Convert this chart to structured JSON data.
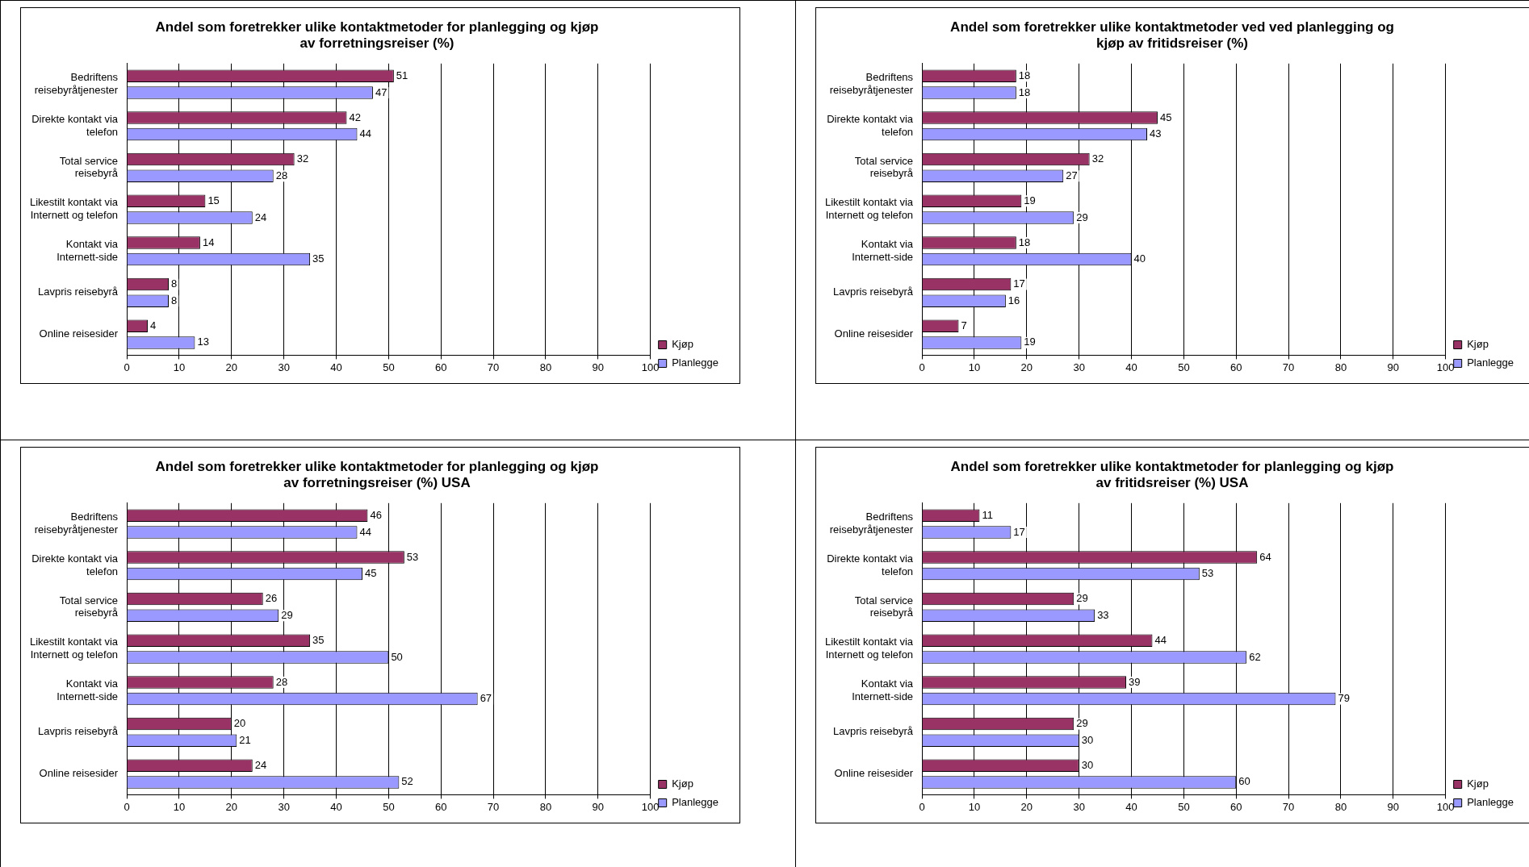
{
  "chart_data": [
    {
      "type": "bar",
      "orientation": "horizontal",
      "title": "Andel som foretrekker ulike kontaktmetoder for planlegging og kjøp av forretningsreiser (%)",
      "categories": [
        "Bedriftens reisebyråtjenester",
        "Direkte kontakt via telefon",
        "Total service reisebyrå",
        "Likestilt kontakt via Internett og telefon",
        "Kontakt via Internett-side",
        "Lavpris reisebyrå",
        "Online reisesider"
      ],
      "series": [
        {
          "name": "Kjøp",
          "color": "#993366",
          "values": [
            51,
            42,
            32,
            15,
            14,
            8,
            4
          ]
        },
        {
          "name": "Planlegge",
          "color": "#9999ff",
          "values": [
            47,
            44,
            28,
            24,
            35,
            8,
            13
          ]
        }
      ],
      "xlim": [
        0,
        100
      ],
      "xticks": [
        0,
        10,
        20,
        30,
        40,
        50,
        60,
        70,
        80,
        90,
        100
      ],
      "grid": "x",
      "legend": "bottom right",
      "data_labels": true
    },
    {
      "type": "bar",
      "orientation": "horizontal",
      "title": "Andel som foretrekker ulike kontaktmetoder ved ved planlegging og kjøp av fritidsreiser (%)",
      "categories": [
        "Bedriftens reisebyråtjenester",
        "Direkte kontakt via telefon",
        "Total service reisebyrå",
        "Likestilt kontakt via Internett og telefon",
        "Kontakt via Internett-side",
        "Lavpris reisebyrå",
        "Online reisesider"
      ],
      "series": [
        {
          "name": "Kjøp",
          "color": "#993366",
          "values": [
            18,
            45,
            32,
            19,
            18,
            17,
            7
          ]
        },
        {
          "name": "Planlegge",
          "color": "#9999ff",
          "values": [
            18,
            43,
            27,
            29,
            40,
            16,
            19
          ]
        }
      ],
      "xlim": [
        0,
        100
      ],
      "xticks": [
        0,
        10,
        20,
        30,
        40,
        50,
        60,
        70,
        80,
        90,
        100
      ],
      "grid": "x",
      "legend": "bottom right",
      "data_labels": true
    },
    {
      "type": "bar",
      "orientation": "horizontal",
      "title": "Andel som foretrekker ulike kontaktmetoder for planlegging og kjøp av forretningsreiser (%) USA",
      "categories": [
        "Bedriftens reisebyråtjenester",
        "Direkte kontakt via telefon",
        "Total service reisebyrå",
        "Likestilt kontakt via Internett og telefon",
        "Kontakt via Internett-side",
        "Lavpris reisebyrå",
        "Online reisesider"
      ],
      "series": [
        {
          "name": "Kjøp",
          "color": "#993366",
          "values": [
            46,
            53,
            26,
            35,
            28,
            20,
            24
          ]
        },
        {
          "name": "Planlegge",
          "color": "#9999ff",
          "values": [
            44,
            45,
            29,
            50,
            67,
            21,
            52
          ]
        }
      ],
      "xlim": [
        0,
        100
      ],
      "xticks": [
        0,
        10,
        20,
        30,
        40,
        50,
        60,
        70,
        80,
        90,
        100
      ],
      "grid": "x",
      "legend": "bottom right",
      "data_labels": true
    },
    {
      "type": "bar",
      "orientation": "horizontal",
      "title": "Andel som foretrekker ulike kontaktmetoder for planlegging og kjøp av fritidsreiser (%) USA",
      "categories": [
        "Bedriftens reisebyråtjenester",
        "Direkte kontakt via telefon",
        "Total service reisebyrå",
        "Likestilt kontakt via Internett og telefon",
        "Kontakt via Internett-side",
        "Lavpris reisebyrå",
        "Online reisesider"
      ],
      "series": [
        {
          "name": "Kjøp",
          "color": "#993366",
          "values": [
            11,
            64,
            29,
            44,
            39,
            29,
            30
          ]
        },
        {
          "name": "Planlegge",
          "color": "#9999ff",
          "values": [
            17,
            53,
            33,
            62,
            79,
            30,
            60
          ]
        }
      ],
      "xlim": [
        0,
        100
      ],
      "xticks": [
        0,
        10,
        20,
        30,
        40,
        50,
        60,
        70,
        80,
        90,
        100
      ],
      "grid": "x",
      "legend": "bottom right",
      "data_labels": true
    }
  ]
}
